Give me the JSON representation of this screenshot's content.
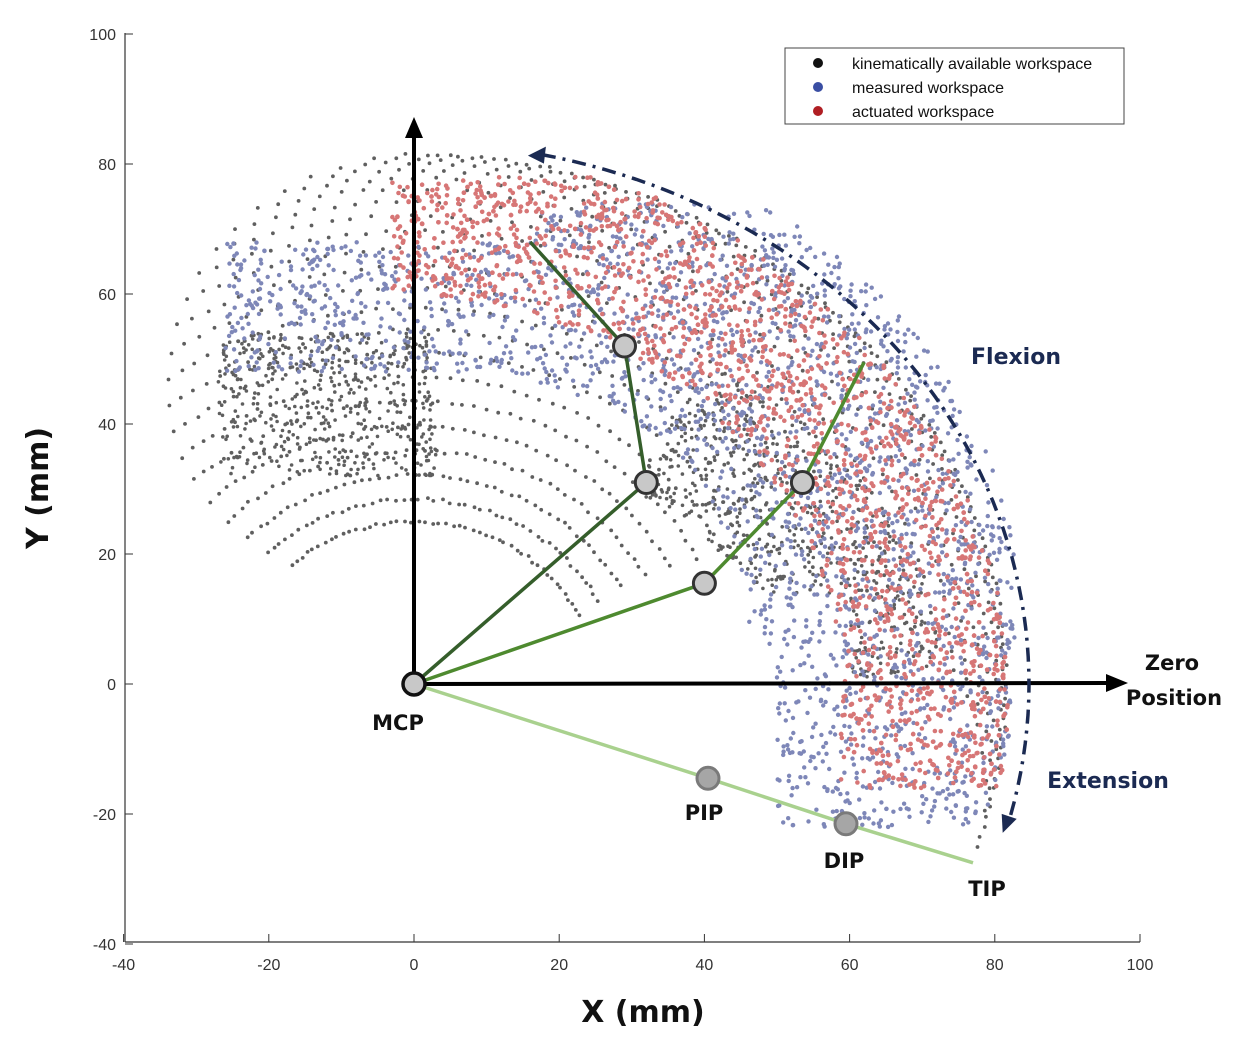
{
  "chart_data": {
    "type": "scatter",
    "xlabel": "X (mm)",
    "ylabel": "Y (mm)",
    "xlim": [
      -40,
      100
    ],
    "ylim": [
      -40,
      100
    ],
    "xticks": [
      -40,
      -20,
      0,
      20,
      40,
      60,
      80,
      100
    ],
    "yticks": [
      -40,
      -20,
      0,
      20,
      40,
      60,
      80,
      100
    ],
    "grid": false,
    "legend_position": "top-right",
    "series": [
      {
        "name": "kinematically available workspace",
        "color": "#111111",
        "point_color": "#5f5f5f"
      },
      {
        "name": "measured workspace",
        "color": "#3a4ea3",
        "point_color": "#7e87b8"
      },
      {
        "name": "actuated workspace",
        "color": "#b01e23",
        "point_color": "#d77676"
      }
    ],
    "joints": [
      {
        "label": "MCP",
        "x": 0,
        "y": 0
      },
      {
        "label": "PIP",
        "x": 40.5,
        "y": -14.5
      },
      {
        "label": "DIP",
        "x": 59.5,
        "y": -21.5
      },
      {
        "label": "TIP",
        "x": 77,
        "y": -27.5
      }
    ],
    "finger_poses": [
      {
        "name": "extended",
        "color": "#a9d18e",
        "points": [
          [
            0,
            0
          ],
          [
            40.5,
            -14.5
          ],
          [
            59.5,
            -21.5
          ],
          [
            77,
            -27.5
          ]
        ]
      },
      {
        "name": "mid-flexion",
        "color": "#4e8a2f",
        "points": [
          [
            0,
            0
          ],
          [
            40,
            15.5
          ],
          [
            53.5,
            31
          ],
          [
            62,
            49.5
          ]
        ]
      },
      {
        "name": "full-flexion",
        "color": "#355e2b",
        "points": [
          [
            0,
            0
          ],
          [
            32,
            31
          ],
          [
            29,
            52
          ],
          [
            16,
            68
          ]
        ]
      }
    ],
    "axes_arrows": {
      "zero_position_label_line1": "Zero",
      "zero_position_label_line2": "Position"
    },
    "annotations": {
      "flexion": "Flexion",
      "extension": "Extension",
      "arrow_color": "#1b2a52"
    }
  }
}
